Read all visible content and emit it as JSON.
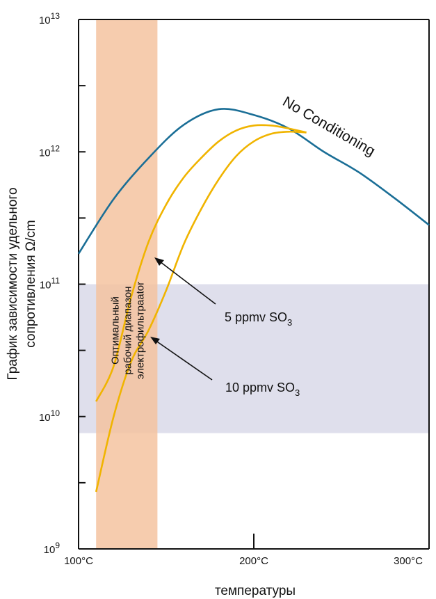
{
  "chart_data": {
    "type": "line",
    "title": "",
    "xlabel": "температуры",
    "ylabel": "График зависимости удельного сопротивления Ω/cm",
    "yscale": "log",
    "xlim": [
      100,
      300
    ],
    "ylim": [
      1000000000.0,
      10000000000000.0
    ],
    "x_ticks": [
      {
        "value": 100,
        "label": "100°C"
      },
      {
        "value": 200,
        "label": "200°C"
      },
      {
        "value": 300,
        "label": "300°C"
      }
    ],
    "y_ticks": [
      {
        "value": 1000000000.0,
        "base": "10",
        "exp": "9"
      },
      {
        "value": 10000000000.0,
        "base": "10",
        "exp": "10"
      },
      {
        "value": 100000000000.0,
        "base": "10",
        "exp": "11"
      },
      {
        "value": 1000000000000.0,
        "base": "10",
        "exp": "12"
      },
      {
        "value": 10000000000000.0,
        "base": "10",
        "exp": "13"
      }
    ],
    "series": [
      {
        "name": "No Conditioning",
        "color": "#1a6e96",
        "x": [
          100,
          120,
          140,
          160,
          180,
          200,
          220,
          240,
          260,
          280,
          300
        ],
        "y": [
          170000000000.0,
          440000000000.0,
          900000000000.0,
          1600000000000.0,
          2100000000000.0,
          1900000000000.0,
          1500000000000.0,
          1000000000000.0,
          700000000000.0,
          450000000000.0,
          280000000000.0
        ]
      },
      {
        "name": "5 ppmv SO3",
        "color": "#f0b400",
        "x": [
          110,
          120,
          130,
          140,
          150,
          160,
          170,
          180,
          190,
          200,
          210,
          220,
          230
        ],
        "y": [
          13000000000.0,
          24000000000.0,
          80000000000.0,
          210000000000.0,
          400000000000.0,
          640000000000.0,
          900000000000.0,
          1200000000000.0,
          1450000000000.0,
          1580000000000.0,
          1580000000000.0,
          1500000000000.0,
          1400000000000.0
        ]
      },
      {
        "name": "10 ppmv SO3",
        "color": "#f0b400",
        "x": [
          110,
          120,
          130,
          140,
          150,
          160,
          170,
          180,
          190,
          200,
          210,
          220,
          230
        ],
        "y": [
          2700000000.0,
          10000000000.0,
          26000000000.0,
          45000000000.0,
          90000000000.0,
          200000000000.0,
          370000000000.0,
          620000000000.0,
          930000000000.0,
          1200000000000.0,
          1370000000000.0,
          1420000000000.0,
          1400000000000.0
        ]
      }
    ],
    "bands": [
      {
        "kind": "vertical",
        "from": 110,
        "to": 145,
        "color": "#f5c3a0",
        "label_lines": [
          "Оптимальный",
          "рабочий диапазон",
          "электрофильтраator"
        ]
      },
      {
        "kind": "horizontal",
        "from": 7500000000.0,
        "to": 100000000000.0,
        "color": "#dcdcea"
      }
    ],
    "annotations": [
      {
        "text_main": "5 ppmv SO",
        "sub": "3"
      },
      {
        "text_main": "10 ppmv SO",
        "sub": "3"
      },
      {
        "text": "No Conditioning"
      }
    ]
  }
}
